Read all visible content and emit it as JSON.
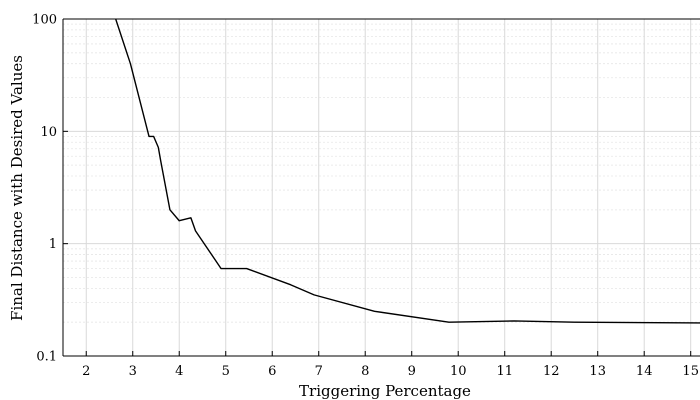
{
  "chart_data": {
    "type": "line",
    "title": "",
    "xlabel": "Triggering Percentage",
    "ylabel": "Final Distance with Desired Values",
    "xlim": [
      1.5,
      15.2
    ],
    "ylim": [
      0.1,
      100
    ],
    "yscale": "log",
    "x_ticks": [
      2,
      3,
      4,
      5,
      6,
      7,
      8,
      9,
      10,
      11,
      12,
      13,
      14,
      15
    ],
    "y_ticks": [
      0.1,
      1,
      10,
      100
    ],
    "y_tick_labels": [
      "0.1",
      "1",
      "10",
      "100"
    ],
    "grid": true,
    "series": [
      {
        "color": "#000000",
        "x": [
          2.6,
          2.95,
          3.35,
          3.45,
          3.55,
          3.6,
          3.8,
          4.0,
          4.25,
          4.35,
          4.9,
          5.45,
          6.4,
          6.9,
          8.2,
          9.8,
          11.2,
          12.5,
          15.2
        ],
        "y": [
          110,
          40,
          9.0,
          9.0,
          7.2,
          5.5,
          2.0,
          1.6,
          1.7,
          1.3,
          0.6,
          0.6,
          0.43,
          0.35,
          0.25,
          0.2,
          0.205,
          0.2,
          0.197
        ]
      }
    ]
  }
}
